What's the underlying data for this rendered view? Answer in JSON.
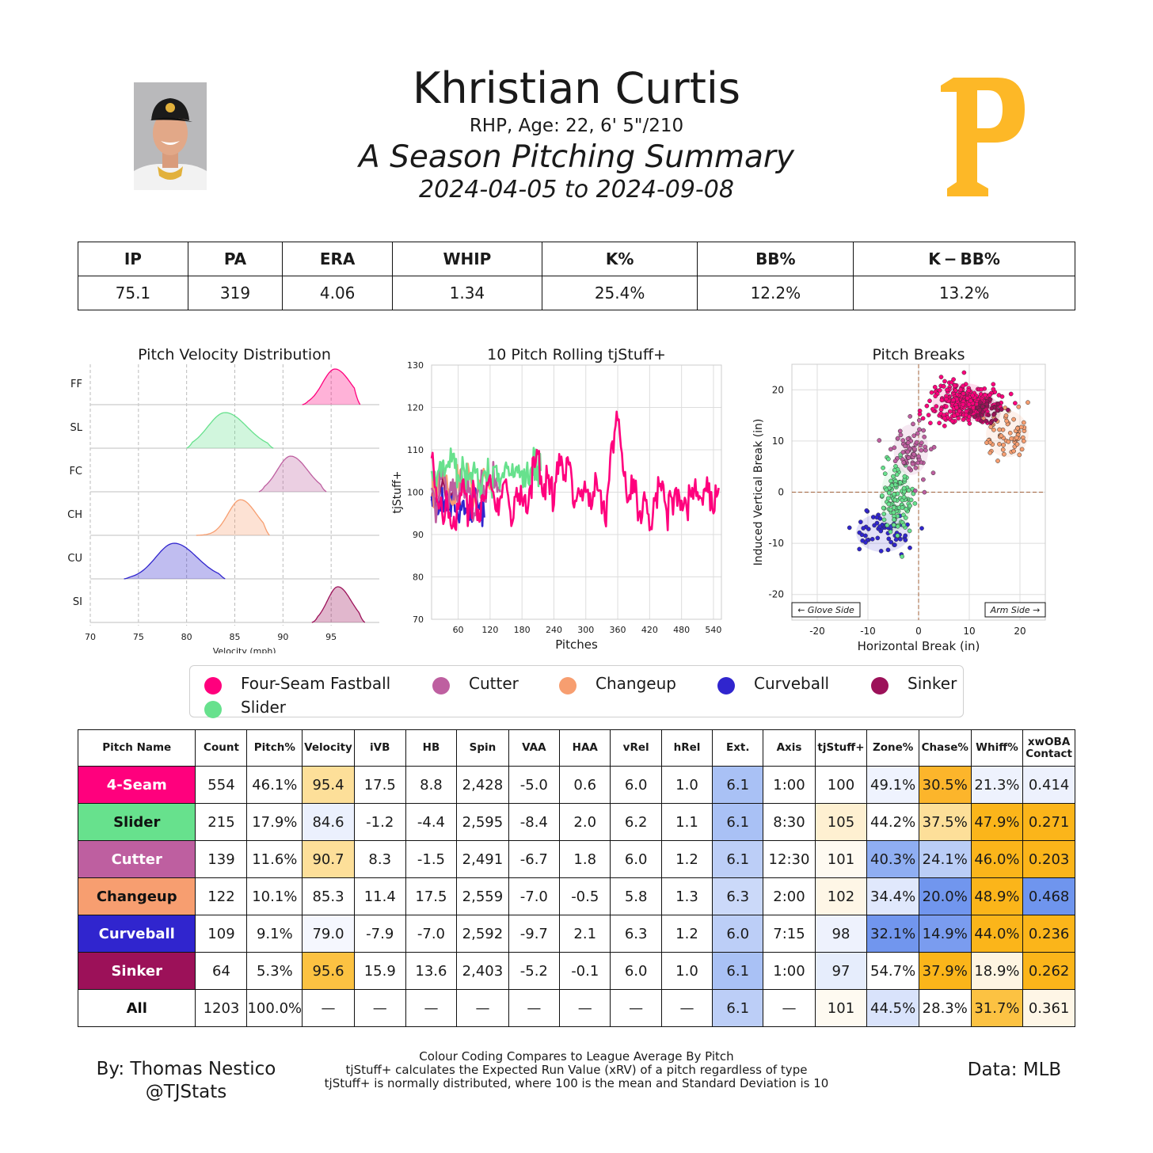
{
  "header": {
    "name": "Khristian Curtis",
    "bio": "RHP, Age: 22, 6' 5\"/210",
    "summary_title": "A Season Pitching Summary",
    "date_range": "2024-04-05 to 2024-09-08",
    "logo_letter": "P",
    "logo_color": "#FDB827"
  },
  "season_stats": {
    "headers": [
      "IP",
      "PA",
      "ERA",
      "WHIP",
      "K%",
      "BB%",
      "K − BB%"
    ],
    "values": [
      "75.1",
      "319",
      "4.06",
      "1.34",
      "25.4%",
      "12.2%",
      "13.2%"
    ]
  },
  "chart_data": [
    {
      "type": "area",
      "title": "Pitch Velocity Distribution",
      "xlabel": "Velocity (mph)",
      "ylabel": "",
      "xlim": [
        70,
        100
      ],
      "x_ticks": [
        70,
        75,
        80,
        85,
        90,
        95
      ],
      "series": [
        {
          "name": "FF",
          "peak": 95.4,
          "sd": 1.3,
          "min": 92,
          "max": 98,
          "color": "#FF007D"
        },
        {
          "name": "SL",
          "peak": 84.0,
          "sd": 1.8,
          "min": 80,
          "max": 89,
          "color": "#67E18D"
        },
        {
          "name": "FC",
          "peak": 90.8,
          "sd": 1.4,
          "min": 87.5,
          "max": 94.5,
          "color": "#BE5FA0"
        },
        {
          "name": "CH",
          "peak": 85.6,
          "sd": 1.3,
          "min": 81,
          "max": 88.6,
          "color": "#F79E70"
        },
        {
          "name": "CU",
          "peak": 78.7,
          "sd": 1.9,
          "min": 73.5,
          "max": 84,
          "color": "#3025CE"
        },
        {
          "name": "SI",
          "peak": 95.7,
          "sd": 1.1,
          "min": 93,
          "max": 98.5,
          "color": "#9C1159"
        }
      ]
    },
    {
      "type": "line",
      "title": "10 Pitch Rolling tjStuff+",
      "xlabel": "Pitches",
      "ylabel": "tjStuff+",
      "xlim": [
        10,
        555
      ],
      "ylim": [
        70,
        130
      ],
      "x_ticks": [
        60,
        120,
        180,
        240,
        300,
        360,
        420,
        480,
        540
      ],
      "y_ticks": [
        70,
        80,
        90,
        100,
        110,
        120,
        130
      ],
      "series": [
        {
          "name": "Four-Seam Fastball",
          "color": "#FF007D",
          "x": [
            10,
            20,
            30,
            40,
            50,
            60,
            70,
            80,
            90,
            100,
            110,
            120,
            130,
            140,
            150,
            160,
            170,
            180,
            190,
            200,
            210,
            220,
            230,
            240,
            250,
            260,
            270,
            280,
            290,
            300,
            310,
            320,
            330,
            340,
            350,
            360,
            370,
            380,
            390,
            400,
            410,
            420,
            430,
            440,
            450,
            460,
            470,
            480,
            490,
            500,
            510,
            520,
            530,
            540,
            550
          ],
          "values": [
            108,
            98,
            95,
            97,
            92,
            96,
            103,
            95,
            101,
            93,
            99,
            104,
            96,
            99,
            103,
            92,
            101,
            98,
            95,
            108,
            109,
            99,
            104,
            97,
            109,
            104,
            107,
            98,
            99,
            100,
            96,
            103,
            95,
            99,
            112,
            117,
            105,
            98,
            103,
            95,
            100,
            91,
            98,
            102,
            97,
            99,
            101,
            98,
            96,
            101,
            100,
            97,
            100,
            95,
            101
          ]
        },
        {
          "name": "Slider",
          "color": "#67E18D",
          "x": [
            10,
            20,
            30,
            40,
            50,
            60,
            70,
            80,
            90,
            100,
            110,
            120,
            130,
            140,
            150,
            160,
            170,
            180,
            190,
            200,
            210,
            215
          ],
          "values": [
            105,
            103,
            107,
            106,
            109,
            104,
            106,
            103,
            107,
            102,
            105,
            104,
            106,
            103,
            107,
            104,
            106,
            105,
            107,
            104,
            106,
            105
          ]
        },
        {
          "name": "Cutter",
          "color": "#BE5FA0",
          "x": [
            10,
            20,
            30,
            40,
            50,
            60,
            70,
            80,
            90,
            100,
            110,
            120,
            130,
            139
          ],
          "values": [
            101,
            96,
            104,
            99,
            103,
            97,
            102,
            100,
            95,
            101,
            99,
            104,
            102,
            100
          ]
        },
        {
          "name": "Changeup",
          "color": "#F79E70",
          "x": [
            10,
            20,
            30,
            40,
            50,
            60,
            70,
            80,
            90,
            100,
            110,
            122
          ],
          "values": [
            104,
            99,
            106,
            101,
            97,
            103,
            100,
            105,
            98,
            102,
            104,
            101
          ]
        },
        {
          "name": "Curveball",
          "color": "#3025CE",
          "x": [
            10,
            20,
            30,
            40,
            50,
            60,
            70,
            80,
            90,
            100,
            109
          ],
          "values": [
            99,
            96,
            101,
            97,
            99,
            94,
            98,
            97,
            100,
            96,
            94
          ]
        },
        {
          "name": "Sinker",
          "color": "#9C1159",
          "x": [
            10,
            20,
            30,
            40,
            50,
            64
          ],
          "values": [
            98,
            95,
            102,
            97,
            100,
            96
          ]
        }
      ]
    },
    {
      "type": "scatter",
      "title": "Pitch Breaks",
      "xlabel": "Horizontal Break (in)",
      "ylabel": "Induced Vertical Break (in)",
      "xlim": [
        -25,
        25
      ],
      "ylim": [
        -25,
        25
      ],
      "x_ticks": [
        -20,
        -10,
        0,
        10,
        20
      ],
      "y_ticks": [
        -20,
        -10,
        0,
        10,
        20
      ],
      "annotations": [
        "← Glove Side",
        "Arm Side →"
      ],
      "series": [
        {
          "name": "Four-Seam Fastball",
          "color": "#FF007D",
          "x_mean": 8.8,
          "y_mean": 17.5,
          "count": 554
        },
        {
          "name": "Slider",
          "color": "#67E18D",
          "x_mean": -4.4,
          "y_mean": -1.2,
          "count": 215
        },
        {
          "name": "Cutter",
          "color": "#BE5FA0",
          "x_mean": -1.5,
          "y_mean": 8.3,
          "count": 139
        },
        {
          "name": "Changeup",
          "color": "#F79E70",
          "x_mean": 17.5,
          "y_mean": 11.4,
          "count": 122
        },
        {
          "name": "Curveball",
          "color": "#3025CE",
          "x_mean": -7.0,
          "y_mean": -7.9,
          "count": 109
        },
        {
          "name": "Sinker",
          "color": "#9C1159",
          "x_mean": 13.6,
          "y_mean": 15.9,
          "count": 64
        }
      ]
    }
  ],
  "legend": [
    {
      "label": "Four-Seam Fastball",
      "color": "#FF007D"
    },
    {
      "label": "Cutter",
      "color": "#BE5FA0"
    },
    {
      "label": "Changeup",
      "color": "#F79E70"
    },
    {
      "label": "Curveball",
      "color": "#3025CE"
    },
    {
      "label": "Sinker",
      "color": "#9C1159"
    },
    {
      "label": "Slider",
      "color": "#67E18D"
    }
  ],
  "pitch_table": {
    "headers": [
      "Pitch Name",
      "Count",
      "Pitch%",
      "Velocity",
      "iVB",
      "HB",
      "Spin",
      "VAA",
      "HAA",
      "vRel",
      "hRel",
      "Ext.",
      "Axis",
      "tjStuff+",
      "Zone%",
      "Chase%",
      "Whiff%",
      "xwOBA Contact"
    ],
    "rows": [
      {
        "name": "4-Seam",
        "bg": "#FF007D",
        "fg": "#ffffff",
        "cells": [
          "554",
          "46.1%",
          "95.4",
          "17.5",
          "8.8",
          "2,428",
          "-5.0",
          "0.6",
          "6.0",
          "1.0",
          "6.1",
          "1:00",
          "100",
          "49.1%",
          "30.5%",
          "21.3%",
          "0.414"
        ],
        "colors": {
          "3": "#FDDF99",
          "11": "#A9C1F5",
          "14": "#EFF3FE",
          "15": "#FCB52B",
          "16": "#EEF2FD",
          "17": "#EDF1FD"
        }
      },
      {
        "name": "Slider",
        "bg": "#67E18D",
        "fg": "#111111",
        "cells": [
          "215",
          "17.9%",
          "84.6",
          "-1.2",
          "-4.4",
          "2,595",
          "-8.4",
          "2.0",
          "6.2",
          "1.1",
          "6.1",
          "8:30",
          "105",
          "44.2%",
          "37.5%",
          "47.9%",
          "0.271"
        ],
        "colors": {
          "3": "#EBF0FD",
          "11": "#A9C1F5",
          "13": "#FEF0D1",
          "15": "#FDDF99",
          "16": "#FBB51A",
          "17": "#FBB51A"
        }
      },
      {
        "name": "Cutter",
        "bg": "#BE5FA0",
        "fg": "#ffffff",
        "cells": [
          "139",
          "11.6%",
          "90.7",
          "8.3",
          "-1.5",
          "2,491",
          "-6.7",
          "1.8",
          "6.0",
          "1.2",
          "6.1",
          "12:30",
          "101",
          "40.3%",
          "24.1%",
          "46.0%",
          "0.203"
        ],
        "colors": {
          "3": "#FDDF99",
          "11": "#BCCEF7",
          "13": "#FEFAF1",
          "14": "#8FAEF2",
          "15": "#BACDF6",
          "16": "#FBB51A",
          "17": "#FBB51A"
        }
      },
      {
        "name": "Changeup",
        "bg": "#F79E70",
        "fg": "#111111",
        "cells": [
          "122",
          "10.1%",
          "85.3",
          "11.4",
          "17.5",
          "2,559",
          "-7.0",
          "-0.5",
          "5.8",
          "1.3",
          "6.3",
          "2:00",
          "102",
          "34.4%",
          "20.0%",
          "48.9%",
          "0.468"
        ],
        "colors": {
          "11": "#CBD9F9",
          "13": "#FEF6E6",
          "14": "#E0E8FC",
          "15": "#7196EE",
          "16": "#FBB51A",
          "17": "#6F95EE"
        }
      },
      {
        "name": "Curveball",
        "bg": "#3025CE",
        "fg": "#ffffff",
        "cells": [
          "109",
          "9.1%",
          "79.0",
          "-7.9",
          "-7.0",
          "2,592",
          "-9.7",
          "2.1",
          "6.3",
          "1.2",
          "6.0",
          "7:15",
          "98",
          "32.1%",
          "14.9%",
          "44.0%",
          "0.236"
        ],
        "colors": {
          "3": "#F5F7FE",
          "11": "#BCCEF7",
          "13": "#EEF2FD",
          "14": "#7196EE",
          "15": "#7A9CEF",
          "16": "#FBB51A",
          "17": "#FBB51A"
        }
      },
      {
        "name": "Sinker",
        "bg": "#9C1159",
        "fg": "#ffffff",
        "cells": [
          "64",
          "5.3%",
          "95.6",
          "15.9",
          "13.6",
          "2,403",
          "-5.2",
          "-0.1",
          "6.0",
          "1.0",
          "6.1",
          "1:00",
          "97",
          "54.7%",
          "37.9%",
          "18.9%",
          "0.262"
        ],
        "colors": {
          "3": "#FCC242",
          "11": "#A9C1F5",
          "13": "#E6EDFC",
          "15": "#FBB51A",
          "16": "#FEF4E1",
          "17": "#FBB51A"
        }
      },
      {
        "name": "All",
        "bg": "#ffffff",
        "fg": "#111111",
        "cells": [
          "1203",
          "100.0%",
          "—",
          "—",
          "—",
          "—",
          "—",
          "—",
          "—",
          "—",
          "6.1",
          "—",
          "101",
          "44.5%",
          "28.3%",
          "31.7%",
          "0.361"
        ],
        "colors": {
          "11": "#BCCEF7",
          "13": "#FEFAF1",
          "14": "#D9E3FB",
          "16": "#FCC242",
          "17": "#FEF6E6"
        }
      }
    ]
  },
  "footer": {
    "author": "By: Thomas Nestico",
    "handle": "@TJStats",
    "note1": "Colour Coding Compares to League Average By Pitch",
    "note2": "tjStuff+ calculates the Expected Run Value (xRV) of a pitch regardless of type",
    "note3": "tjStuff+ is normally distributed, where 100 is the mean and Standard Deviation is 10",
    "data_source": "Data: MLB"
  }
}
